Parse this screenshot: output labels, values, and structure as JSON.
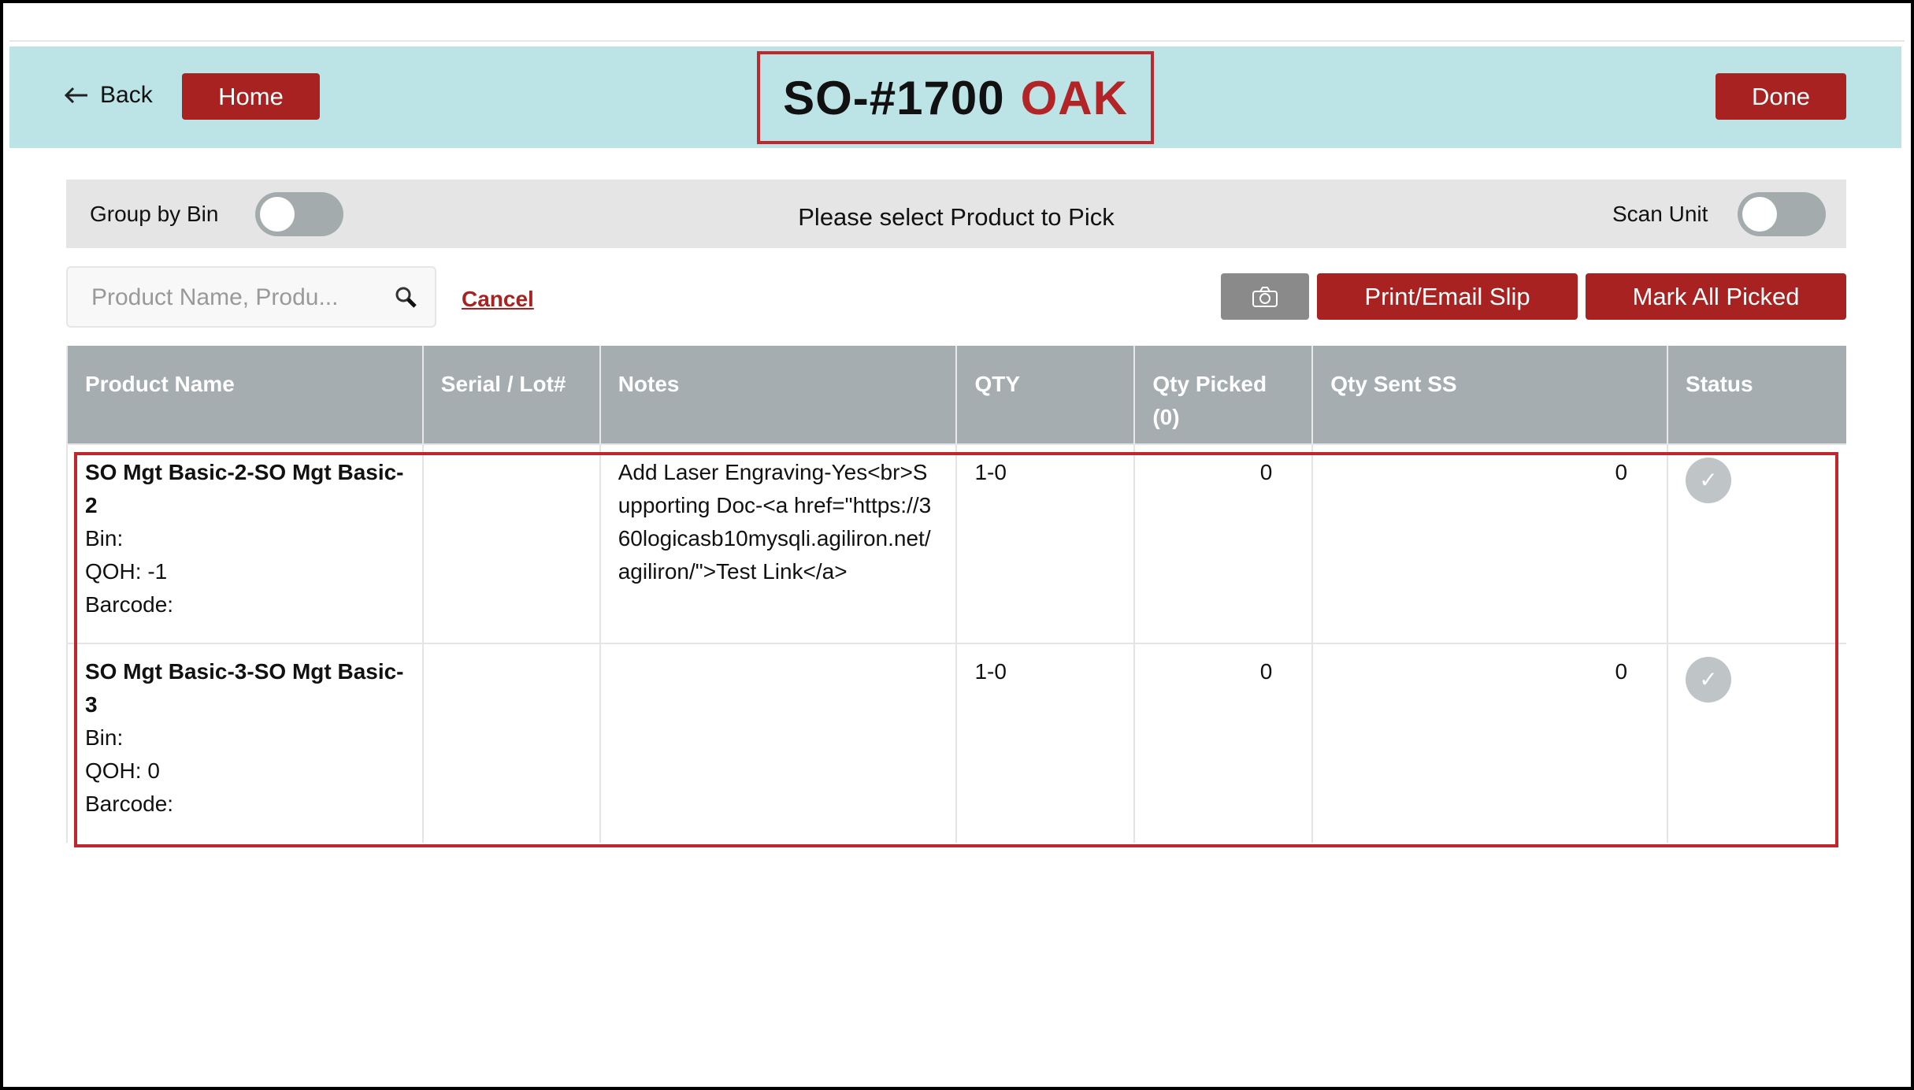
{
  "header": {
    "back_label": "Back",
    "home_label": "Home",
    "order_number": "SO-#1700",
    "location": "OAK",
    "done_label": "Done"
  },
  "toolbar": {
    "group_by_bin_label": "Group by Bin",
    "group_by_bin_on": false,
    "instruction": "Please select Product to Pick",
    "scan_unit_label": "Scan Unit",
    "scan_unit_on": false
  },
  "actions": {
    "search_placeholder": "Product Name, Produ...",
    "cancel_label": "Cancel",
    "camera_icon": "camera-icon",
    "print_label": "Print/Email Slip",
    "mark_all_label": "Mark All Picked"
  },
  "table": {
    "columns": [
      "Product Name",
      "Serial / Lot#",
      "Notes",
      "QTY",
      "Qty Picked",
      "(0)",
      "Qty Sent SS",
      "Status"
    ],
    "rows": [
      {
        "name": "SO Mgt Basic-2-SO Mgt Basic-2",
        "bin": "Bin:",
        "qoh": "QOH: -1",
        "barcode": "Barcode:",
        "serial": "",
        "notes": "Add Laser Engraving-Yes<br>Supporting Doc-<a href=\"https://360logicasb10mysqli.agiliron.net/agiliron/\">Test Link</a>",
        "qty": "1-0",
        "picked": "0",
        "sent": "0",
        "status": "check"
      },
      {
        "name": "SO Mgt Basic-3-SO Mgt Basic-3",
        "bin": "Bin:",
        "qoh": "QOH: 0",
        "barcode": "Barcode:",
        "serial": "",
        "notes": "",
        "qty": "1-0",
        "picked": "0",
        "sent": "0",
        "status": "check"
      }
    ]
  },
  "colors": {
    "accent": "#a82221",
    "header_bg": "#bce3e5",
    "highlight": "#c0272d",
    "table_header": "#a5adb0"
  }
}
